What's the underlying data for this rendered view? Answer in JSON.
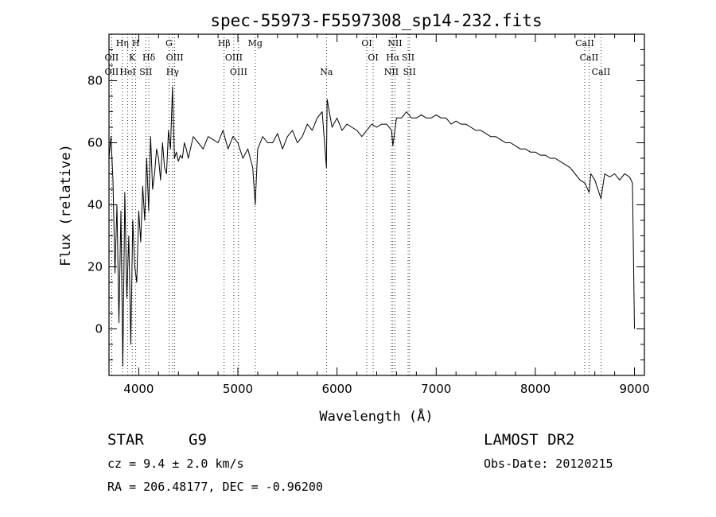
{
  "chart_data": {
    "type": "line",
    "title": "spec-55973-F5597308_sp14-232.fits",
    "xlabel": "Wavelength (Å)",
    "ylabel": "Flux (relative)",
    "xlim": [
      3700,
      9100
    ],
    "ylim": [
      -15,
      95
    ],
    "xticks": [
      4000,
      5000,
      6000,
      7000,
      8000,
      9000
    ],
    "yticks": [
      0,
      20,
      40,
      60,
      80
    ],
    "grid": false,
    "series": [
      {
        "x": [
          3700,
          3720,
          3740,
          3760,
          3780,
          3800,
          3820,
          3840,
          3860,
          3880,
          3900,
          3920,
          3940,
          3960,
          3980,
          4000,
          4020,
          4040,
          4060,
          4080,
          4100,
          4120,
          4140,
          4160,
          4180,
          4200,
          4220,
          4240,
          4260,
          4280,
          4300,
          4320,
          4340,
          4360,
          4380,
          4400,
          4420,
          4440,
          4460,
          4480,
          4500,
          4550,
          4600,
          4650,
          4700,
          4750,
          4800,
          4850,
          4900,
          4950,
          5000,
          5050,
          5100,
          5150,
          5175,
          5200,
          5250,
          5300,
          5350,
          5400,
          5450,
          5500,
          5550,
          5600,
          5650,
          5700,
          5750,
          5800,
          5850,
          5893,
          5900,
          5950,
          6000,
          6050,
          6100,
          6150,
          6200,
          6250,
          6300,
          6350,
          6400,
          6450,
          6500,
          6550,
          6563,
          6600,
          6650,
          6700,
          6750,
          6800,
          6850,
          6900,
          6950,
          7000,
          7050,
          7100,
          7150,
          7200,
          7250,
          7300,
          7350,
          7400,
          7450,
          7500,
          7550,
          7600,
          7650,
          7700,
          7750,
          7800,
          7850,
          7900,
          7950,
          8000,
          8050,
          8100,
          8150,
          8200,
          8250,
          8300,
          8350,
          8400,
          8450,
          8500,
          8542,
          8560,
          8600,
          8662,
          8700,
          8750,
          8800,
          8850,
          8900,
          8950,
          8980,
          9000
        ],
        "y": [
          55,
          62,
          48,
          18,
          40,
          2,
          38,
          -12,
          44,
          10,
          30,
          -5,
          35,
          20,
          15,
          38,
          28,
          46,
          35,
          55,
          38,
          62,
          45,
          50,
          58,
          55,
          48,
          60,
          52,
          50,
          64,
          58,
          78,
          55,
          57,
          54,
          56,
          55,
          60,
          58,
          55,
          62,
          60,
          58,
          62,
          61,
          60,
          64,
          58,
          62,
          60,
          55,
          58,
          52,
          40,
          58,
          62,
          60,
          60,
          63,
          58,
          62,
          64,
          60,
          62,
          66,
          64,
          68,
          70,
          52,
          74,
          65,
          68,
          64,
          66,
          65,
          64,
          62,
          64,
          66,
          65,
          66,
          66,
          64,
          59,
          68,
          68,
          70,
          68,
          68,
          69,
          68,
          68,
          69,
          68,
          68,
          66,
          67,
          66,
          66,
          65,
          64,
          64,
          63,
          62,
          62,
          61,
          60,
          60,
          59,
          58,
          58,
          57,
          57,
          56,
          56,
          55,
          55,
          54,
          53,
          52,
          50,
          48,
          47,
          44,
          50,
          48,
          42,
          50,
          49,
          50,
          48,
          50,
          49,
          47,
          0
        ]
      }
    ],
    "lines": [
      {
        "label": "OII",
        "x": 3727
      },
      {
        "label": "OII",
        "x": 3727
      },
      {
        "label": "Hη",
        "x": 3835
      },
      {
        "label": "H",
        "x": 3970
      },
      {
        "label": "K",
        "x": 3934
      },
      {
        "label": "HeI",
        "x": 3889
      },
      {
        "label": "Hδ",
        "x": 4102
      },
      {
        "label": "SII",
        "x": 4072
      },
      {
        "label": "G",
        "x": 4305
      },
      {
        "label": "OIII",
        "x": 4363
      },
      {
        "label": "Hγ",
        "x": 4341
      },
      {
        "label": "Hβ",
        "x": 4861
      },
      {
        "label": "OIII",
        "x": 4959
      },
      {
        "label": "OIII",
        "x": 5007
      },
      {
        "label": "Mg",
        "x": 5175
      },
      {
        "label": "Na",
        "x": 5893
      },
      {
        "label": "OI",
        "x": 6300
      },
      {
        "label": "OI",
        "x": 6364
      },
      {
        "label": "NII",
        "x": 6584
      },
      {
        "label": "Hα",
        "x": 6563
      },
      {
        "label": "SII",
        "x": 6717
      },
      {
        "label": "NII",
        "x": 6548
      },
      {
        "label": "SII",
        "x": 6731
      },
      {
        "label": "CaII",
        "x": 8498
      },
      {
        "label": "CaII",
        "x": 8542
      },
      {
        "label": "CaII",
        "x": 8662
      }
    ]
  },
  "info": {
    "class": "STAR",
    "subclass": "G9",
    "cz": "cz = 9.4 ± 2.0 km/s",
    "coords": "RA = 206.48177, DEC =  -0.96200",
    "survey": "LAMOST DR2",
    "obs_date": "Obs-Date: 20120215"
  }
}
